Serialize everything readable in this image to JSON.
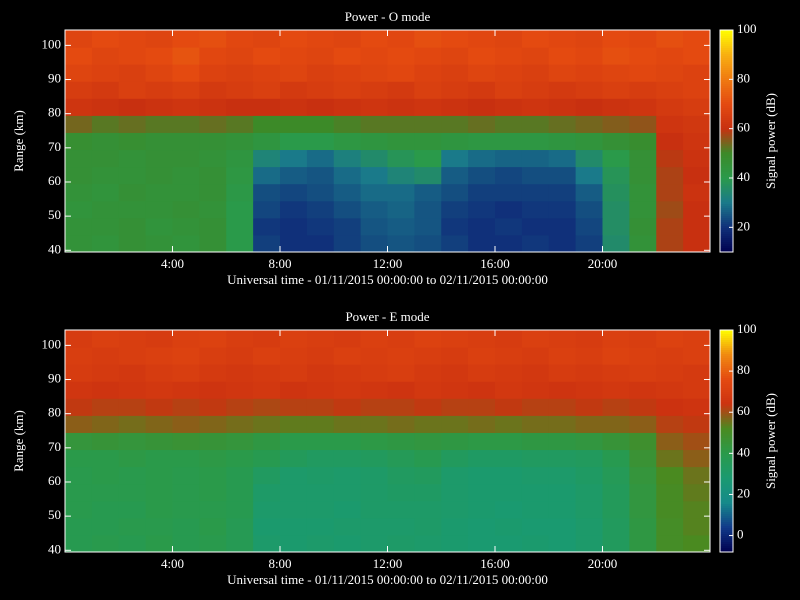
{
  "chart_data": [
    {
      "type": "heatmap",
      "title": "Power - O mode",
      "xlabel": "Universal time - 01/11/2015 00:00:00 to 02/11/2015 00:00:00",
      "ylabel": "Range (km)",
      "colorbar_label": "Signal power (dB)",
      "xlim": [
        0,
        24
      ],
      "xticks": [
        {
          "value": 4,
          "label": "4:00"
        },
        {
          "value": 8,
          "label": "8:00"
        },
        {
          "value": 12,
          "label": "12:00"
        },
        {
          "value": 16,
          "label": "16:00"
        },
        {
          "value": 20,
          "label": "20:00"
        }
      ],
      "ylim": [
        39.5,
        104.5
      ],
      "yticks": [
        40,
        50,
        60,
        70,
        80,
        90,
        100
      ],
      "zlim": [
        10,
        100
      ],
      "zticks": [
        20,
        40,
        60,
        80,
        100
      ],
      "colormap": [
        "#000050",
        "#10307a",
        "#1a7a8a",
        "#2a9a4a",
        "#3c8a28",
        "#c83010",
        "#e44a10",
        "#f07a10",
        "#f8b010",
        "#ffff00"
      ],
      "x": [
        0.5,
        1.5,
        2.5,
        3.5,
        4.5,
        5.5,
        6.5,
        7.5,
        8.5,
        9.5,
        10.5,
        11.5,
        12.5,
        13.5,
        14.5,
        15.5,
        16.5,
        17.5,
        18.5,
        19.5,
        20.5,
        21.5,
        22.5,
        23.5
      ],
      "y": [
        42,
        47,
        52,
        57,
        62,
        67,
        72,
        77,
        82,
        87,
        92,
        97,
        102
      ],
      "values": [
        [
          45,
          44,
          46,
          45,
          44,
          46,
          40,
          22,
          20,
          20,
          22,
          24,
          25,
          24,
          22,
          20,
          20,
          21,
          20,
          22,
          35,
          45,
          58,
          60
        ],
        [
          45,
          45,
          46,
          44,
          45,
          46,
          40,
          21,
          20,
          21,
          22,
          25,
          26,
          25,
          21,
          20,
          21,
          20,
          20,
          23,
          36,
          46,
          58,
          60
        ],
        [
          44,
          45,
          45,
          45,
          46,
          45,
          40,
          23,
          21,
          22,
          24,
          26,
          27,
          25,
          22,
          21,
          20,
          21,
          21,
          24,
          36,
          45,
          57,
          60
        ],
        [
          45,
          44,
          46,
          45,
          45,
          46,
          41,
          24,
          23,
          24,
          26,
          28,
          28,
          26,
          24,
          22,
          22,
          22,
          22,
          26,
          37,
          45,
          58,
          61
        ],
        [
          46,
          45,
          45,
          46,
          45,
          46,
          42,
          28,
          26,
          25,
          28,
          30,
          33,
          35,
          26,
          24,
          23,
          24,
          24,
          30,
          38,
          46,
          58,
          60
        ],
        [
          46,
          46,
          45,
          46,
          46,
          45,
          43,
          33,
          30,
          28,
          32,
          35,
          38,
          40,
          30,
          28,
          27,
          27,
          28,
          35,
          40,
          46,
          59,
          61
        ],
        [
          47,
          46,
          47,
          46,
          46,
          46,
          45,
          43,
          40,
          40,
          42,
          43,
          44,
          44,
          43,
          42,
          42,
          42,
          43,
          44,
          46,
          48,
          60,
          62
        ],
        [
          54,
          52,
          53,
          52,
          52,
          53,
          52,
          50,
          50,
          50,
          51,
          52,
          52,
          52,
          52,
          53,
          52,
          52,
          53,
          54,
          55,
          56,
          62,
          63
        ],
        [
          62,
          61,
          60,
          61,
          62,
          61,
          60,
          60,
          61,
          60,
          61,
          62,
          61,
          62,
          61,
          60,
          61,
          62,
          61,
          60,
          61,
          62,
          64,
          65
        ],
        [
          65,
          64,
          66,
          65,
          66,
          64,
          65,
          66,
          64,
          65,
          66,
          65,
          64,
          66,
          65,
          64,
          66,
          65,
          64,
          65,
          66,
          65,
          66,
          67
        ],
        [
          68,
          67,
          66,
          68,
          70,
          67,
          66,
          67,
          68,
          66,
          67,
          68,
          69,
          67,
          66,
          68,
          67,
          66,
          68,
          67,
          68,
          69,
          68,
          67
        ],
        [
          70,
          68,
          69,
          70,
          72,
          69,
          68,
          70,
          69,
          68,
          70,
          69,
          70,
          69,
          68,
          70,
          69,
          68,
          70,
          69,
          71,
          70,
          69,
          70
        ],
        [
          68,
          70,
          69,
          68,
          70,
          71,
          69,
          68,
          70,
          69,
          68,
          70,
          69,
          71,
          70,
          69,
          68,
          70,
          69,
          68,
          70,
          69,
          71,
          70
        ]
      ]
    },
    {
      "type": "heatmap",
      "title": "Power - E mode",
      "xlabel": "Universal time - 01/11/2015 00:00:00 to 02/11/2015 00:00:00",
      "ylabel": "Range (km)",
      "colorbar_label": "Signal power (dB)",
      "xlim": [
        0,
        24
      ],
      "xticks": [
        {
          "value": 4,
          "label": "4:00"
        },
        {
          "value": 8,
          "label": "8:00"
        },
        {
          "value": 12,
          "label": "12:00"
        },
        {
          "value": 16,
          "label": "16:00"
        },
        {
          "value": 20,
          "label": "20:00"
        }
      ],
      "ylim": [
        39.5,
        104.5
      ],
      "yticks": [
        40,
        50,
        60,
        70,
        80,
        90,
        100
      ],
      "zlim": [
        -8,
        100
      ],
      "zticks": [
        0,
        20,
        40,
        60,
        80,
        100
      ],
      "colormap": [
        "#000050",
        "#103a8a",
        "#168a8a",
        "#1a9a70",
        "#2a9a4a",
        "#4a8a20",
        "#cc3210",
        "#e44a10",
        "#f08a10",
        "#ffff00"
      ],
      "x": [
        0.5,
        1.5,
        2.5,
        3.5,
        4.5,
        5.5,
        6.5,
        7.5,
        8.5,
        9.5,
        10.5,
        11.5,
        12.5,
        13.5,
        14.5,
        15.5,
        16.5,
        17.5,
        18.5,
        19.5,
        20.5,
        21.5,
        22.5,
        23.5
      ],
      "y": [
        42,
        47,
        52,
        57,
        62,
        67,
        72,
        77,
        82,
        87,
        92,
        97,
        102
      ],
      "values": [
        [
          38,
          39,
          38,
          40,
          38,
          39,
          37,
          30,
          29,
          30,
          29,
          30,
          31,
          30,
          29,
          28,
          28,
          29,
          28,
          30,
          34,
          42,
          50,
          52
        ],
        [
          38,
          38,
          39,
          39,
          38,
          40,
          37,
          29,
          29,
          29,
          30,
          30,
          30,
          31,
          29,
          28,
          29,
          28,
          28,
          30,
          34,
          42,
          50,
          53
        ],
        [
          39,
          38,
          38,
          40,
          39,
          39,
          38,
          30,
          30,
          30,
          29,
          31,
          31,
          31,
          30,
          29,
          28,
          29,
          29,
          31,
          35,
          43,
          51,
          53
        ],
        [
          39,
          39,
          39,
          40,
          39,
          40,
          38,
          31,
          30,
          30,
          30,
          31,
          32,
          32,
          30,
          29,
          29,
          29,
          29,
          31,
          35,
          43,
          51,
          54
        ],
        [
          39,
          40,
          39,
          40,
          39,
          40,
          38,
          33,
          30,
          31,
          30,
          31,
          33,
          34,
          30,
          29,
          29,
          30,
          30,
          32,
          36,
          44,
          52,
          55
        ],
        [
          40,
          40,
          41,
          40,
          40,
          41,
          40,
          38,
          35,
          33,
          33,
          34,
          36,
          38,
          34,
          32,
          32,
          33,
          33,
          34,
          38,
          46,
          55,
          58
        ],
        [
          44,
          45,
          44,
          45,
          46,
          45,
          44,
          42,
          40,
          40,
          40,
          41,
          42,
          43,
          42,
          41,
          41,
          42,
          42,
          43,
          45,
          48,
          58,
          60
        ],
        [
          58,
          57,
          56,
          57,
          58,
          57,
          56,
          55,
          54,
          54,
          55,
          55,
          56,
          55,
          55,
          56,
          55,
          56,
          56,
          57,
          57,
          58,
          62,
          63
        ],
        [
          63,
          62,
          62,
          63,
          62,
          63,
          62,
          61,
          62,
          62,
          63,
          62,
          62,
          63,
          62,
          62,
          63,
          62,
          62,
          63,
          62,
          63,
          64,
          65
        ],
        [
          66,
          65,
          66,
          67,
          66,
          65,
          66,
          67,
          65,
          66,
          67,
          66,
          65,
          67,
          66,
          65,
          67,
          66,
          65,
          66,
          67,
          66,
          67,
          68
        ],
        [
          69,
          68,
          67,
          69,
          70,
          68,
          67,
          68,
          69,
          67,
          68,
          69,
          70,
          68,
          67,
          69,
          68,
          67,
          69,
          68,
          69,
          70,
          69,
          68
        ],
        [
          70,
          69,
          70,
          71,
          72,
          70,
          69,
          71,
          70,
          69,
          71,
          70,
          71,
          70,
          69,
          71,
          70,
          69,
          71,
          70,
          72,
          71,
          70,
          71
        ],
        [
          69,
          71,
          70,
          69,
          71,
          72,
          70,
          69,
          71,
          70,
          69,
          71,
          70,
          72,
          71,
          70,
          69,
          71,
          70,
          69,
          71,
          70,
          72,
          71
        ]
      ]
    }
  ]
}
